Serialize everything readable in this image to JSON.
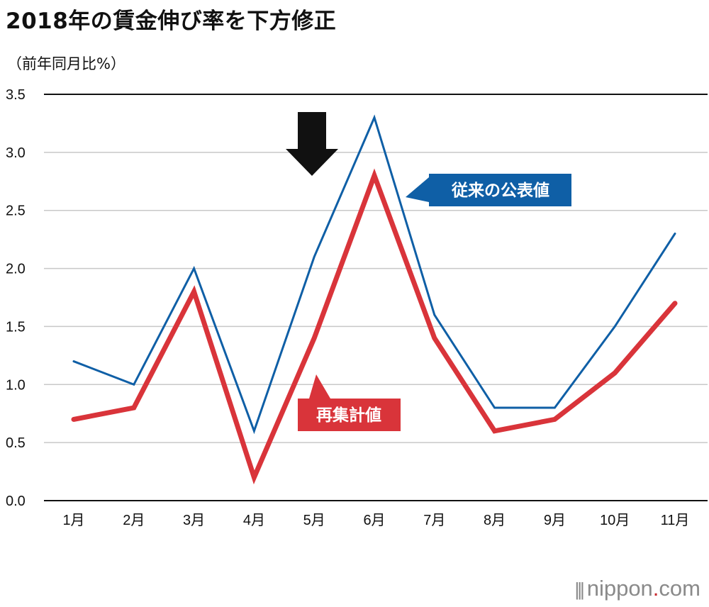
{
  "chart_data": {
    "type": "line",
    "title": "2018年の賃金伸び率を下方修正",
    "ylabel": "（前年同月比%）",
    "categories": [
      "1月",
      "2月",
      "3月",
      "4月",
      "5月",
      "6月",
      "7月",
      "8月",
      "9月",
      "10月",
      "11月"
    ],
    "ylim": [
      0,
      3.5
    ],
    "yticks": [
      "0.0",
      "0.5",
      "1.0",
      "1.5",
      "2.0",
      "2.5",
      "3.0",
      "3.5"
    ],
    "series": [
      {
        "name": "従来の公表値",
        "color": "#0f5fa6",
        "values": [
          1.2,
          1.0,
          2.0,
          0.6,
          2.1,
          3.3,
          1.6,
          0.8,
          0.8,
          1.5,
          2.3
        ]
      },
      {
        "name": "再集計値",
        "color": "#d9343a",
        "values": [
          0.7,
          0.8,
          1.8,
          0.2,
          1.4,
          2.8,
          1.4,
          0.6,
          0.7,
          1.1,
          1.7
        ]
      }
    ],
    "annotation": {
      "type": "down-arrow",
      "at": "5月"
    }
  },
  "logo": {
    "name": "nippon",
    "dot": ".",
    "suffix": "com"
  }
}
